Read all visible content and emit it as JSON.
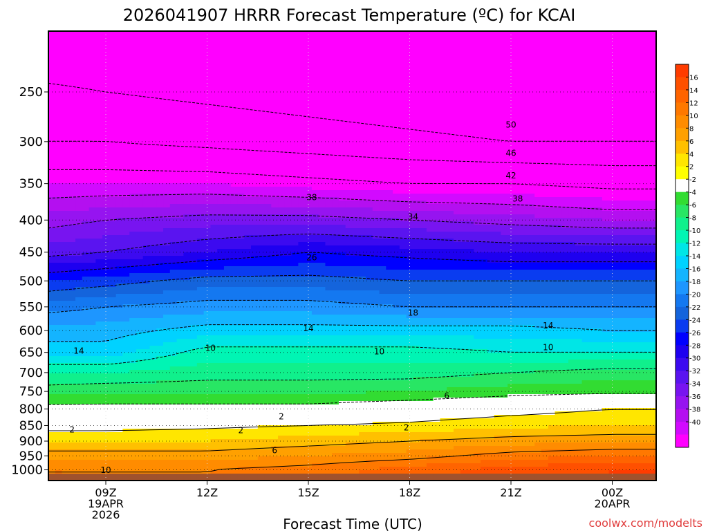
{
  "chart_data": {
    "type": "heatmap",
    "title": "2026041907 HRRR Forecast Temperature (ºC) for KCAI",
    "xlabel": "Forecast Time (UTC)",
    "ylabel": "",
    "credit": "coolwx.com/modelts",
    "x_range_hours": [
      7.3,
      25.3
    ],
    "p_range": [
      200,
      1040
    ],
    "x_ticks": [
      {
        "hour": 9,
        "lines": [
          "09Z",
          "19APR",
          "2026"
        ]
      },
      {
        "hour": 12,
        "lines": [
          "12Z"
        ]
      },
      {
        "hour": 15,
        "lines": [
          "15Z"
        ]
      },
      {
        "hour": 18,
        "lines": [
          "18Z"
        ]
      },
      {
        "hour": 21,
        "lines": [
          "21Z"
        ]
      },
      {
        "hour": 24,
        "lines": [
          "00Z",
          "20APR"
        ]
      }
    ],
    "y_ticks": [
      "250",
      "300",
      "350",
      "400",
      "450",
      "500",
      "550",
      "600",
      "650",
      "700",
      "750",
      "800",
      "850",
      "900",
      "950",
      "1000"
    ],
    "colorbar_labels": [
      "16",
      "14",
      "12",
      "10",
      "8",
      "6",
      "4",
      "2",
      "-2",
      "-4",
      "-6",
      "-8",
      "-10",
      "-12",
      "-14",
      "-16",
      "-18",
      "-20",
      "-22",
      "-24",
      "-26",
      "-28",
      "-30",
      "-32",
      "-34",
      "-36",
      "-38",
      "-40"
    ],
    "colorbar_colors": [
      "#ff3c00",
      "#ff5000",
      "#ff6400",
      "#ff7800",
      "#ff8c00",
      "#ffa000",
      "#ffc000",
      "#ffe600",
      "#ffff00",
      "#ffffff",
      "#32dc32",
      "#28e664",
      "#10f08c",
      "#00f5b4",
      "#00e6e6",
      "#00d2ff",
      "#14b4ff",
      "#1e96ff",
      "#1478f0",
      "#1464dc",
      "#0a3cf0",
      "#0000ff",
      "#1e00f0",
      "#3c0af0",
      "#5a14f0",
      "#7814f0",
      "#9614f0",
      "#b40ff0",
      "#d20aff",
      "#ff00ff"
    ],
    "temperature_profile": {
      "hours": [
        7.3,
        9,
        12,
        15,
        18,
        21,
        24,
        25.3
      ],
      "pressure_levels": [
        200,
        250,
        300,
        350,
        400,
        450,
        500,
        550,
        600,
        650,
        700,
        750,
        800,
        850,
        900,
        950,
        1000,
        1040
      ],
      "temps": [
        [
          -56,
          -56,
          -56,
          -56,
          -56,
          -56,
          -56,
          -56
        ],
        [
          -49,
          -50,
          -51,
          -52,
          -53,
          -54,
          -54,
          -54
        ],
        [
          -46,
          -46,
          -47,
          -48,
          -49,
          -50,
          -50,
          -50
        ],
        [
          -40,
          -40,
          -40,
          -41,
          -42,
          -42,
          -43,
          -43
        ],
        [
          -35,
          -34,
          -33,
          -33,
          -34,
          -35,
          -36,
          -36
        ],
        [
          -31,
          -30,
          -28,
          -26,
          -27,
          -28,
          -28,
          -28
        ],
        [
          -24,
          -23,
          -21,
          -21,
          -22,
          -22,
          -22,
          -22
        ],
        [
          -19,
          -18,
          -17,
          -17,
          -18,
          -18,
          -18,
          -18
        ],
        [
          -15,
          -15,
          -13,
          -13,
          -13,
          -13,
          -14,
          -14
        ],
        [
          -13,
          -13,
          -9,
          -9,
          -9,
          -10,
          -10,
          -10
        ],
        [
          -8,
          -8,
          -7,
          -7,
          -7,
          -6,
          -5,
          -5
        ],
        [
          -5,
          -4.5,
          -4.5,
          -4.5,
          -4,
          -3,
          -2.5,
          -2.5
        ],
        [
          -1,
          -1,
          -1,
          -1,
          0,
          1,
          2,
          2
        ],
        [
          1,
          1,
          1.5,
          2,
          2.5,
          3.5,
          4,
          4
        ],
        [
          4,
          4,
          4,
          5,
          6,
          7,
          7.5,
          7.5
        ],
        [
          7,
          7,
          7,
          8,
          9,
          11,
          12,
          12
        ],
        [
          10,
          10,
          10,
          11,
          13,
          15,
          16,
          16
        ],
        [
          10,
          10,
          10,
          11,
          13,
          15,
          16,
          16
        ]
      ]
    },
    "contour_labels": [
      {
        "value": "50",
        "hour": 21.0,
        "p": 282
      },
      {
        "value": "46",
        "hour": 21.0,
        "p": 313
      },
      {
        "value": "42",
        "hour": 21.0,
        "p": 340
      },
      {
        "value": "38",
        "hour": 15.1,
        "p": 368
      },
      {
        "value": "38",
        "hour": 21.2,
        "p": 370
      },
      {
        "value": "34",
        "hour": 18.1,
        "p": 395
      },
      {
        "value": "26",
        "hour": 15.1,
        "p": 459
      },
      {
        "value": "18",
        "hour": 18.1,
        "p": 562
      },
      {
        "value": "14",
        "hour": 15.0,
        "p": 595
      },
      {
        "value": "14",
        "hour": 22.1,
        "p": 589
      },
      {
        "value": "14",
        "hour": 8.2,
        "p": 646
      },
      {
        "value": "10",
        "hour": 12.1,
        "p": 640
      },
      {
        "value": "10",
        "hour": 17.1,
        "p": 648
      },
      {
        "value": "10",
        "hour": 22.1,
        "p": 638
      },
      {
        "value": "6",
        "hour": 19.1,
        "p": 762
      },
      {
        "value": "2",
        "hour": 14.2,
        "p": 823
      },
      {
        "value": "2",
        "hour": 8.0,
        "p": 863
      },
      {
        "value": "2",
        "hour": 13.0,
        "p": 865
      },
      {
        "value": "2",
        "hour": 17.9,
        "p": 857
      },
      {
        "value": "6",
        "hour": 14.0,
        "p": 931
      },
      {
        "value": "10",
        "hour": 9.0,
        "p": 1001
      }
    ]
  }
}
